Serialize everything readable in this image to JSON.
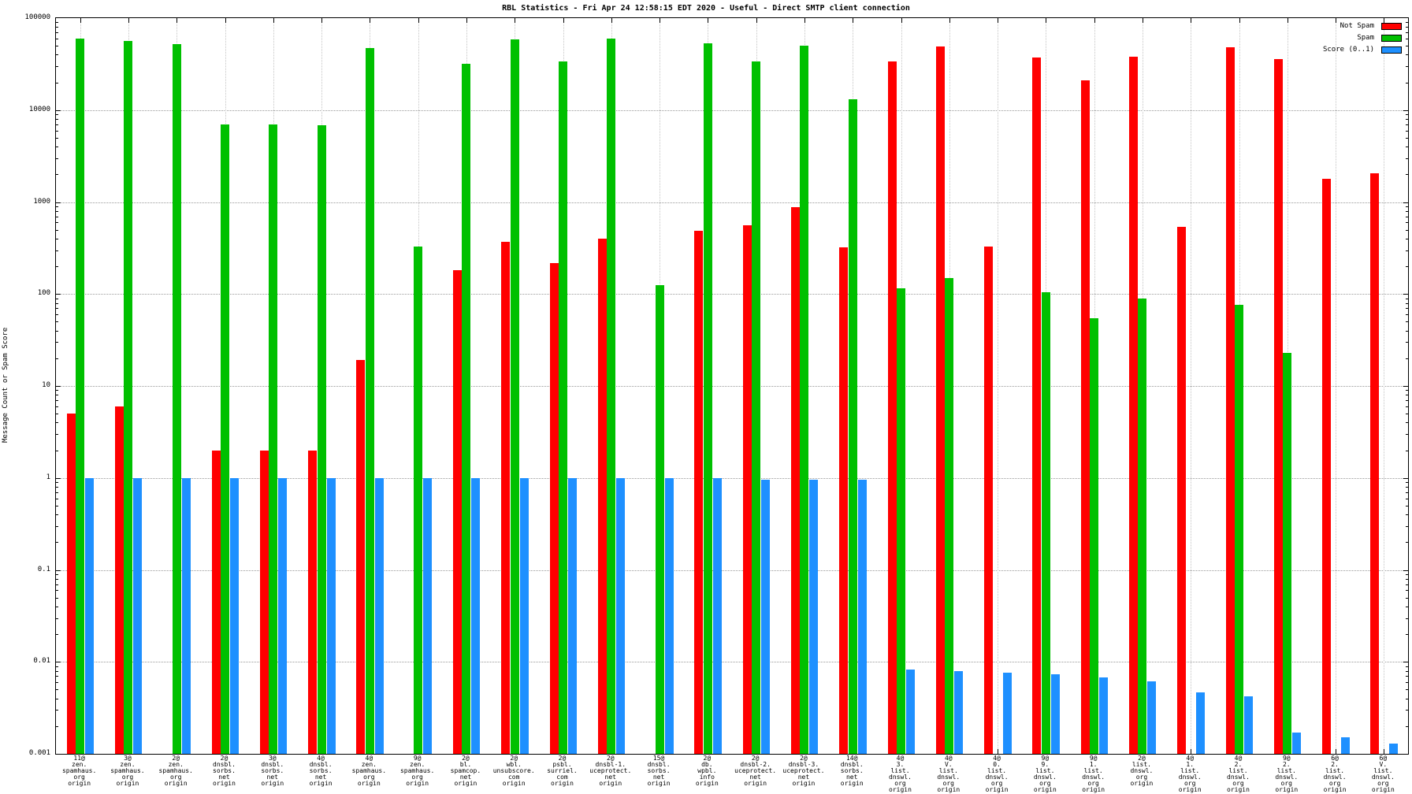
{
  "chart_data": {
    "type": "bar",
    "title": "RBL Statistics - Fri Apr 24 12:58:15 EDT 2020 - Useful - Direct SMTP client connection",
    "xlabel": "",
    "ylabel": "Message Count or Spam Score",
    "y_scale": "log",
    "ylim": [
      0.001,
      100000
    ],
    "y_ticks": [
      "100000",
      "10000",
      "1000",
      "100",
      "10",
      "1",
      "0.1",
      "0.01",
      "0.001"
    ],
    "grid": true,
    "legend_position": "top-right-inside",
    "categories": [
      [
        "11@",
        "zen.",
        "spamhaus.",
        "org",
        "origin"
      ],
      [
        "3@",
        "zen.",
        "spamhaus.",
        "org",
        "origin"
      ],
      [
        "2@",
        "zen.",
        "spamhaus.",
        "org",
        "origin"
      ],
      [
        "2@",
        "dnsbl.",
        "sorbs.",
        "net",
        "origin"
      ],
      [
        "3@",
        "dnsbl.",
        "sorbs.",
        "net",
        "origin"
      ],
      [
        "4@",
        "dnsbl.",
        "sorbs.",
        "net",
        "origin"
      ],
      [
        "4@",
        "zen.",
        "spamhaus.",
        "org",
        "origin"
      ],
      [
        "9@",
        "zen.",
        "spamhaus.",
        "org",
        "origin"
      ],
      [
        "2@",
        "bl.",
        "spamcop.",
        "net",
        "origin"
      ],
      [
        "2@",
        "wbl.",
        "unsubscore.",
        "com",
        "origin"
      ],
      [
        "2@",
        "psbl.",
        "surriel.",
        "com",
        "origin"
      ],
      [
        "2@",
        "dnsbl-1.",
        "uceprotect.",
        "net",
        "origin"
      ],
      [
        "15@",
        "dnsbl.",
        "sorbs.",
        "net",
        "origin"
      ],
      [
        "2@",
        "db.",
        "wpbl.",
        "info",
        "origin"
      ],
      [
        "2@",
        "dnsbl-2.",
        "uceprotect.",
        "net",
        "origin"
      ],
      [
        "2@",
        "dnsbl-3.",
        "uceprotect.",
        "net",
        "origin"
      ],
      [
        "14@",
        "dnsbl.",
        "sorbs.",
        "net",
        "origin"
      ],
      [
        "4@",
        "3.",
        "list.",
        "dnswl.",
        "org",
        "origin"
      ],
      [
        "4@",
        "V.",
        "list.",
        "dnswl.",
        "org",
        "origin"
      ],
      [
        "4@",
        "0.",
        "list.",
        "dnswl.",
        "org",
        "origin"
      ],
      [
        "9@",
        "9.",
        "list.",
        "dnswl.",
        "org",
        "origin"
      ],
      [
        "9@",
        "1.",
        "list.",
        "dnswl.",
        "org",
        "origin"
      ],
      [
        "2@",
        "list.",
        "dnswl.",
        "org",
        "origin"
      ],
      [
        "4@",
        "1.",
        "list.",
        "dnswl.",
        "org",
        "origin"
      ],
      [
        "4@",
        "2.",
        "list.",
        "dnswl.",
        "org",
        "origin"
      ],
      [
        "9@",
        "2.",
        "list.",
        "dnswl.",
        "org",
        "origin"
      ],
      [
        "6@",
        "2.",
        "list.",
        "dnswl.",
        "org",
        "origin"
      ],
      [
        "6@",
        "V.",
        "list.",
        "dnswl.",
        "org",
        "origin"
      ]
    ],
    "series": [
      {
        "name": "Not Spam",
        "color": "#ff0000",
        "values": [
          5,
          6,
          0,
          2,
          2,
          2,
          19,
          0,
          180,
          370,
          215,
          400,
          0,
          490,
          560,
          880,
          320,
          34000,
          49000,
          330,
          37000,
          21000,
          38000,
          540,
          48000,
          36000,
          1800,
          2050
        ]
      },
      {
        "name": "Spam",
        "color": "#00c000",
        "values": [
          60000,
          56000,
          52000,
          7000,
          7000,
          6800,
          47000,
          330,
          32000,
          59000,
          34000,
          60000,
          125,
          53000,
          34000,
          50000,
          13000,
          115,
          150,
          0,
          105,
          55,
          90,
          0,
          76,
          23,
          0,
          0
        ]
      },
      {
        "name": "Score (0..1)",
        "color": "#1e90ff",
        "values": [
          1,
          1,
          1,
          1,
          1,
          1,
          1,
          1,
          1,
          1,
          1,
          1,
          1,
          1,
          0.95,
          0.95,
          0.95,
          0.0082,
          0.008,
          0.0077,
          0.0073,
          0.0068,
          0.0062,
          0.0047,
          0.0042,
          0.0017,
          0.0015,
          0.0013
        ]
      }
    ]
  }
}
